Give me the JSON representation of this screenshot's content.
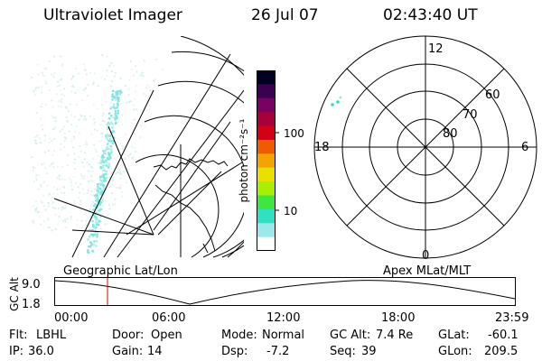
{
  "header": {
    "instrument": "Ultraviolet Imager",
    "date": "26 Jul 07",
    "time": "02:43:40 UT"
  },
  "colorbar": {
    "unit_label": "photon cm⁻²s⁻¹",
    "ticks": [
      "100",
      "10"
    ],
    "colors": [
      "#000022",
      "#3b0050",
      "#7a0064",
      "#a8003a",
      "#d40018",
      "#f05a00",
      "#f4a400",
      "#e8e000",
      "#a8f000",
      "#40e640",
      "#30e0c0",
      "#9ae8ea",
      "#ffffff"
    ]
  },
  "polar_plot": {
    "mlt_labels": [
      "12",
      "18",
      "6",
      "0"
    ],
    "lat_labels": [
      "60",
      "70",
      "80"
    ]
  },
  "orbit_strip": {
    "left_caption": "Geographic Lat/Lon",
    "right_caption": "Apex MLat/MLT",
    "y_axis_label": "GC Alt",
    "y_ticks": [
      "9.0",
      "1.8"
    ],
    "x_ticks": [
      "00:00",
      "06:00",
      "12:00",
      "18:00",
      "23:59"
    ]
  },
  "status": {
    "row1": [
      {
        "label": "Flt:",
        "value": "LBHL"
      },
      {
        "label": "Door:",
        "value": "Open"
      },
      {
        "label": "Mode:",
        "value": "Normal"
      },
      {
        "label": "GC Alt:",
        "value": "7.4 Re"
      },
      {
        "label": "GLat:",
        "value": "-60.1"
      }
    ],
    "row2": [
      {
        "label": "IP:",
        "value": "36.0"
      },
      {
        "label": "Gain:",
        "value": "14"
      },
      {
        "label": "Dsp:",
        "value": "-7.2"
      },
      {
        "label": "Seq:",
        "value": "39"
      },
      {
        "label": "GLon:",
        "value": "209.5"
      }
    ]
  },
  "colors": {
    "aurora": "#7fe6e0",
    "marker": "#e00000"
  }
}
